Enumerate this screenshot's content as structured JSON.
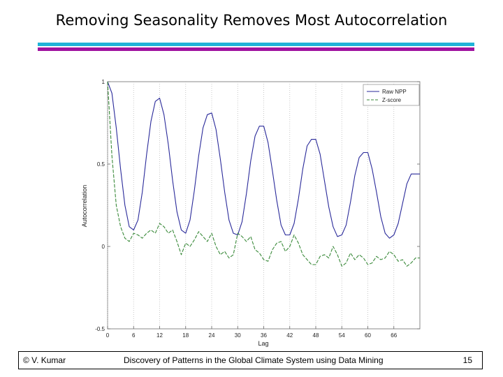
{
  "slide": {
    "title": "Removing Seasonality Removes Most Autocorrelation",
    "accent_colors": {
      "top_bar": "#1fb3d8",
      "bottom_bar": "#a0129f"
    }
  },
  "footer": {
    "author": "© V. Kumar",
    "course": "Discovery of Patterns in the Global Climate System using Data Mining",
    "page": "15"
  },
  "chart_data": {
    "type": "line",
    "title": "",
    "xlabel": "Lag",
    "ylabel": "Autocorrelation",
    "xlim": [
      0,
      72
    ],
    "ylim": [
      -0.5,
      1
    ],
    "xticks": [
      0,
      6,
      12,
      18,
      24,
      30,
      36,
      42,
      48,
      54,
      60,
      66
    ],
    "xtick_labels": [
      "0",
      "6",
      "12",
      "18",
      "24",
      "30",
      "36",
      "42",
      "48",
      "54",
      "60",
      "66"
    ],
    "yticks": [
      -0.5,
      0,
      0.5,
      1
    ],
    "ytick_labels": [
      "-0.5",
      "0",
      "0.5",
      "1"
    ],
    "grid": "vertical dotted",
    "legend_position": "top-right",
    "series": [
      {
        "name": "Raw NPP",
        "color": "#2a2a9a",
        "style": "solid",
        "x": [
          0,
          1,
          2,
          3,
          4,
          5,
          6,
          7,
          8,
          9,
          10,
          11,
          12,
          13,
          14,
          15,
          16,
          17,
          18,
          19,
          20,
          21,
          22,
          23,
          24,
          25,
          26,
          27,
          28,
          29,
          30,
          31,
          32,
          33,
          34,
          35,
          36,
          37,
          38,
          39,
          40,
          41,
          42,
          43,
          44,
          45,
          46,
          47,
          48,
          49,
          50,
          51,
          52,
          53,
          54,
          55,
          56,
          57,
          58,
          59,
          60,
          61,
          62,
          63,
          64,
          65,
          66,
          67,
          68,
          69,
          70,
          71,
          72
        ],
        "values": [
          1.0,
          0.93,
          0.72,
          0.47,
          0.25,
          0.12,
          0.1,
          0.16,
          0.33,
          0.56,
          0.76,
          0.88,
          0.9,
          0.8,
          0.62,
          0.4,
          0.21,
          0.1,
          0.08,
          0.16,
          0.34,
          0.55,
          0.72,
          0.8,
          0.81,
          0.71,
          0.53,
          0.33,
          0.16,
          0.08,
          0.07,
          0.15,
          0.32,
          0.52,
          0.67,
          0.73,
          0.73,
          0.63,
          0.46,
          0.28,
          0.13,
          0.07,
          0.07,
          0.14,
          0.29,
          0.47,
          0.61,
          0.65,
          0.65,
          0.56,
          0.4,
          0.24,
          0.12,
          0.06,
          0.07,
          0.13,
          0.27,
          0.43,
          0.54,
          0.57,
          0.57,
          0.47,
          0.33,
          0.18,
          0.08,
          0.05,
          0.07,
          0.14,
          0.26,
          0.38,
          0.44,
          0.44,
          0.44
        ]
      },
      {
        "name": "Z-score",
        "color": "#3a8a3a",
        "style": "dashed",
        "x": [
          0,
          1,
          2,
          3,
          4,
          5,
          6,
          7,
          8,
          9,
          10,
          11,
          12,
          13,
          14,
          15,
          16,
          17,
          18,
          19,
          20,
          21,
          22,
          23,
          24,
          25,
          26,
          27,
          28,
          29,
          30,
          31,
          32,
          33,
          34,
          35,
          36,
          37,
          38,
          39,
          40,
          41,
          42,
          43,
          44,
          45,
          46,
          47,
          48,
          49,
          50,
          51,
          52,
          53,
          54,
          55,
          56,
          57,
          58,
          59,
          60,
          61,
          62,
          63,
          64,
          65,
          66,
          67,
          68,
          69,
          70,
          71,
          72
        ],
        "values": [
          1.0,
          0.55,
          0.25,
          0.12,
          0.05,
          0.03,
          0.08,
          0.07,
          0.05,
          0.08,
          0.1,
          0.08,
          0.14,
          0.12,
          0.08,
          0.1,
          0.03,
          -0.05,
          0.02,
          0.0,
          0.04,
          0.09,
          0.06,
          0.03,
          0.08,
          0.0,
          -0.05,
          -0.03,
          -0.07,
          -0.05,
          0.08,
          0.06,
          0.03,
          0.06,
          -0.02,
          -0.04,
          -0.08,
          -0.09,
          -0.02,
          0.02,
          0.03,
          -0.03,
          0.0,
          0.07,
          0.02,
          -0.05,
          -0.08,
          -0.11,
          -0.11,
          -0.06,
          -0.05,
          -0.07,
          0.0,
          -0.05,
          -0.12,
          -0.1,
          -0.04,
          -0.08,
          -0.05,
          -0.07,
          -0.11,
          -0.1,
          -0.06,
          -0.08,
          -0.07,
          -0.03,
          -0.05,
          -0.09,
          -0.08,
          -0.12,
          -0.1,
          -0.07,
          -0.07
        ]
      }
    ]
  }
}
